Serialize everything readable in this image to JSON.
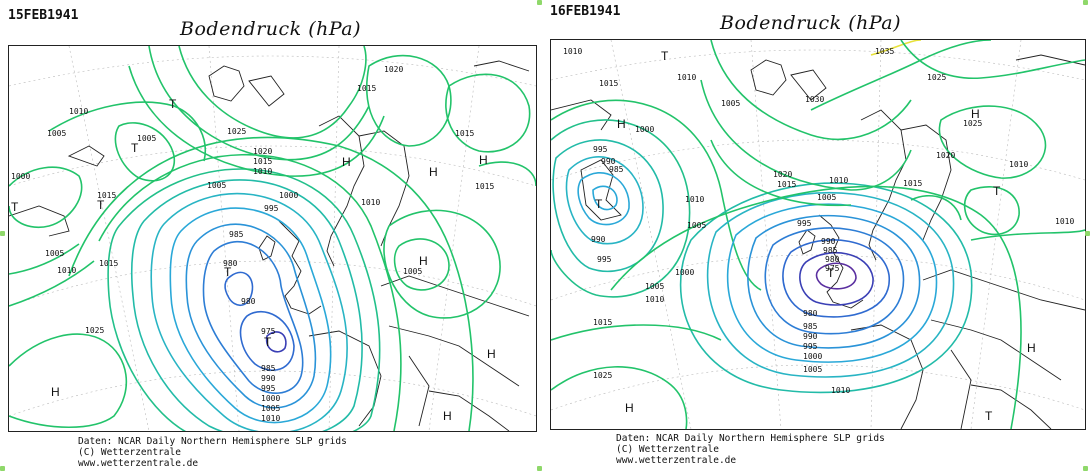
{
  "panels": [
    {
      "date": "15FEB1941",
      "title": "Bodendruck (hPa)",
      "credits": [
        "Daten: NCAR Daily Northern Hemisphere SLP grids",
        "(C) Wetterzentrale",
        "www.wetterzentrale.de"
      ],
      "pressure_labels": [
        "1010",
        "1005",
        "1005",
        "1000",
        "1015",
        "1005",
        "1010",
        "1015",
        "985",
        "980",
        "980",
        "975",
        "985",
        "990",
        "995",
        "1000",
        "1005",
        "1010",
        "1025",
        "995",
        "1000",
        "1005",
        "1010",
        "1015",
        "1020",
        "1025",
        "1015",
        "1020",
        "1010",
        "1005",
        "1015",
        "1015"
      ],
      "systems": [
        "T",
        "T",
        "T",
        "T",
        "T",
        "T",
        "H",
        "H",
        "H",
        "H",
        "H",
        "H",
        "H"
      ]
    },
    {
      "date": "16FEB1941",
      "title": "Bodendruck (hPa)",
      "credits": [
        "Daten: NCAR Daily Northern Hemisphere SLP grids",
        "(C) Wetterzentrale",
        "www.wetterzentrale.de"
      ],
      "pressure_labels": [
        "1010",
        "1015",
        "1010",
        "1005",
        "1000",
        "995",
        "990",
        "985",
        "990",
        "995",
        "1000",
        "1005",
        "1010",
        "1015",
        "1025",
        "1020",
        "1015",
        "1010",
        "1005",
        "995",
        "990",
        "985",
        "980",
        "975",
        "980",
        "985",
        "990",
        "995",
        "1000",
        "1005",
        "1010",
        "1035",
        "1030",
        "1025",
        "1020",
        "1015",
        "1010",
        "1005",
        "1025",
        "1010",
        "1010"
      ],
      "systems": [
        "T",
        "T",
        "T",
        "T",
        "T",
        "H",
        "H",
        "H",
        "H"
      ]
    }
  ],
  "colors": {
    "green": "#22c36a",
    "teal": "#20b5a8",
    "cyan": "#2aa8d8",
    "blue": "#2f6ad0",
    "darkblue": "#3a3fb5",
    "purple": "#5a2fa0",
    "yellow": "#e7e13a",
    "coast": "#222222",
    "frame": "#222222"
  }
}
